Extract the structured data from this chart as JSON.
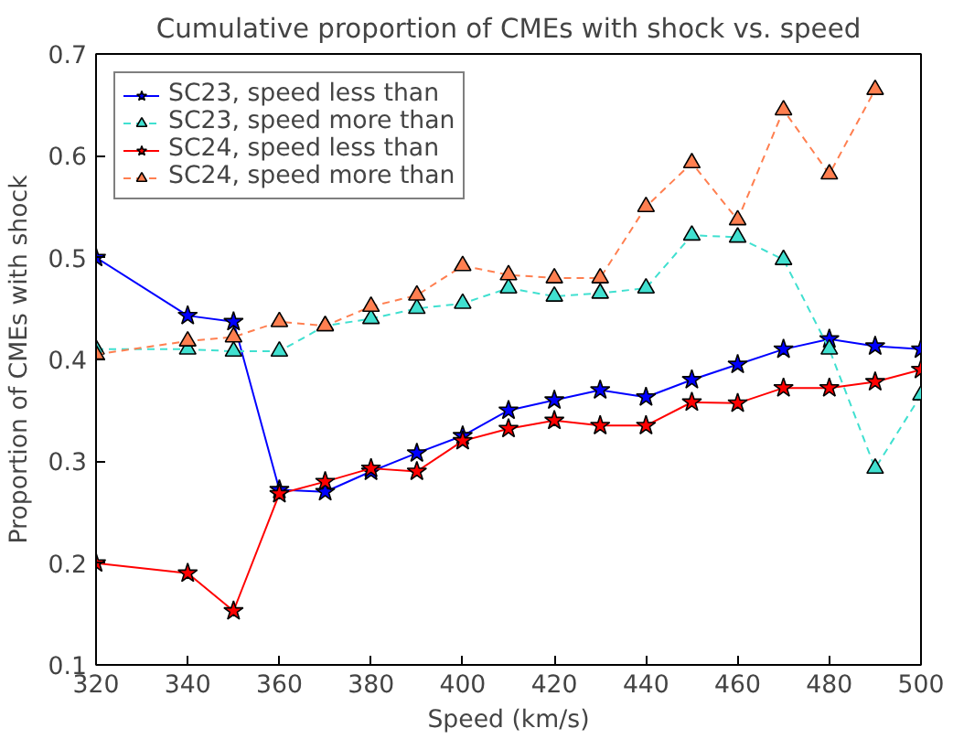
{
  "chart_data": {
    "type": "line",
    "title": "Cumulative proportion of CMEs with shock vs. speed",
    "xlabel": "Speed (km/s)",
    "ylabel": "Proportion of CMEs with shock",
    "x": [
      320,
      340,
      350,
      360,
      370,
      380,
      390,
      400,
      410,
      420,
      430,
      440,
      450,
      460,
      470,
      480,
      490,
      500
    ],
    "xlim": [
      320,
      500
    ],
    "xticks": [
      320,
      340,
      360,
      380,
      400,
      420,
      440,
      460,
      480,
      500
    ],
    "ylim": [
      0.1,
      0.7
    ],
    "yticks": [
      0.1,
      0.2,
      0.3,
      0.4,
      0.5,
      0.6,
      0.7
    ],
    "grid": false,
    "legend": "top left",
    "series": [
      {
        "name": "SC23, speed less than",
        "color": "#0000ff",
        "marker": "star",
        "line_style": "solid",
        "values": [
          0.5,
          0.443,
          0.437,
          0.272,
          0.27,
          0.29,
          0.308,
          0.325,
          0.35,
          0.36,
          0.37,
          0.363,
          0.38,
          0.395,
          0.41,
          0.42,
          0.413,
          0.41
        ]
      },
      {
        "name": "SC23, speed more than",
        "color": "#40e0d0",
        "marker": "triangle",
        "line_style": "dashed",
        "values": [
          0.41,
          0.41,
          0.408,
          0.408,
          0.433,
          0.44,
          0.45,
          0.455,
          0.47,
          0.462,
          0.465,
          0.47,
          0.522,
          0.52,
          0.498,
          0.41,
          0.293,
          0.365
        ]
      },
      {
        "name": "SC24, speed less than",
        "color": "#ff0000",
        "marker": "star",
        "line_style": "solid",
        "values": [
          0.2,
          0.19,
          0.153,
          0.268,
          0.28,
          0.293,
          0.29,
          0.32,
          0.332,
          0.34,
          0.335,
          0.335,
          0.358,
          0.357,
          0.372,
          0.372,
          0.378,
          0.39
        ]
      },
      {
        "name": "SC24, speed more than",
        "color": "#ff7f50",
        "marker": "triangle",
        "line_style": "dashed",
        "values": [
          0.405,
          0.418,
          0.422,
          0.437,
          0.433,
          0.452,
          0.463,
          0.492,
          0.483,
          0.48,
          0.48,
          0.55,
          0.593,
          0.537,
          0.645,
          0.582,
          0.665,
          null
        ]
      }
    ]
  }
}
